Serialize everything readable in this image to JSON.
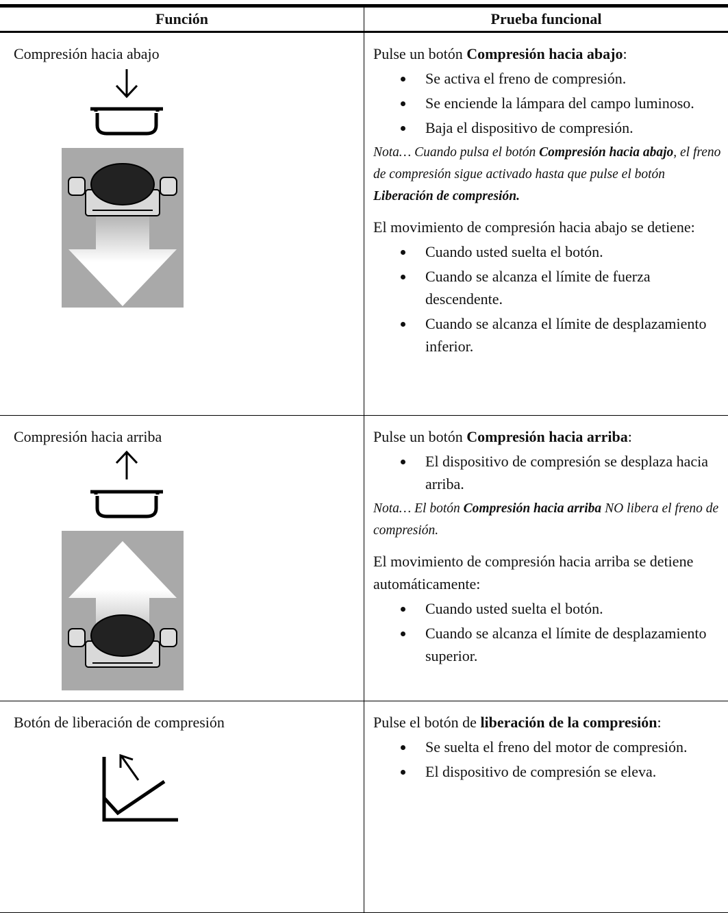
{
  "table": {
    "header": [
      "Función",
      "Prueba funcional"
    ],
    "rows": [
      {
        "function": "Compresión hacia abajo",
        "test": [
          {
            "kind": "p",
            "runs": [
              "Pulse un botón ",
              {
                "bold": "Compresión hacia abajo"
              },
              ":"
            ]
          },
          {
            "kind": "ul",
            "items": [
              "Se activa el freno de compresión.",
              "Se enciende la lámpara del campo luminoso.",
              "Baja el dispositivo de compresión."
            ]
          },
          {
            "kind": "note",
            "runs": [
              "Nota… Cuando pulsa el botón ",
              {
                "bold": "Compresión hacia abajo"
              },
              ", el freno de compresión sigue activado hasta que pulse el botón ",
              {
                "bold": "Liberación de compresión."
              }
            ]
          },
          {
            "kind": "p",
            "runs": [
              "El movimiento de compresión hacia abajo se detiene:"
            ]
          },
          {
            "kind": "ul",
            "items": [
              "Cuando usted suelta el botón.",
              "Cuando se alcanza el límite de fuerza descendente.",
              "Cuando se alcanza el límite de desplazamiento inferior."
            ]
          }
        ]
      },
      {
        "function": "Compresión hacia arriba",
        "test": [
          {
            "kind": "p",
            "runs": [
              "Pulse un botón ",
              {
                "bold": "Compresión hacia arriba"
              },
              ":"
            ]
          },
          {
            "kind": "ul",
            "items": [
              "El dispositivo de compresión se desplaza hacia arriba."
            ]
          },
          {
            "kind": "note",
            "runs": [
              "Nota… El botón ",
              {
                "bold": "Compresión hacia arriba"
              },
              " NO libera el freno de compresión."
            ]
          },
          {
            "kind": "p",
            "runs": [
              "El movimiento de compresión hacia arriba se detiene automáticamente:"
            ]
          },
          {
            "kind": "ul",
            "items": [
              "Cuando usted suelta el botón.",
              "Cuando se alcanza el límite de desplazamiento superior."
            ]
          }
        ]
      },
      {
        "function": "Botón de liberación de compresión",
        "test": [
          {
            "kind": "p",
            "runs": [
              "Pulse el botón de ",
              {
                "bold": "liberación de la compresión"
              },
              ":"
            ]
          },
          {
            "kind": "ul",
            "items": [
              "Se suelta el freno del motor de compresión.",
              "El dispositivo de compresión se eleva."
            ]
          }
        ]
      }
    ]
  }
}
